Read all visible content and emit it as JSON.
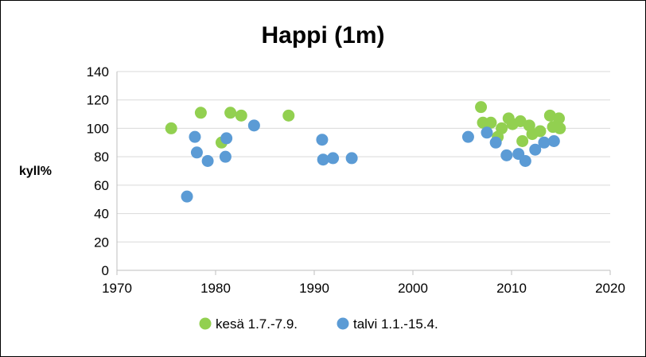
{
  "chart_data": {
    "type": "scatter",
    "title": "Happi (1m)",
    "xlabel": "",
    "ylabel": "kyll%",
    "xlim": [
      1970,
      2020
    ],
    "ylim": [
      0,
      140
    ],
    "xticks": [
      1970,
      1980,
      1990,
      2000,
      2010,
      2020
    ],
    "yticks": [
      0,
      20,
      40,
      60,
      80,
      100,
      120,
      140
    ],
    "grid": "horizontal",
    "legend_position": "bottom",
    "series": [
      {
        "name": "kesä 1.7.-7.9.",
        "color": "#92d050",
        "points": [
          {
            "x": 1975.5,
            "y": 100
          },
          {
            "x": 1978.5,
            "y": 111
          },
          {
            "x": 1980.6,
            "y": 90
          },
          {
            "x": 1981.5,
            "y": 111
          },
          {
            "x": 1982.6,
            "y": 109
          },
          {
            "x": 1987.4,
            "y": 109
          },
          {
            "x": 2006.9,
            "y": 115
          },
          {
            "x": 2007.1,
            "y": 104
          },
          {
            "x": 2007.9,
            "y": 104
          },
          {
            "x": 2008.6,
            "y": 94
          },
          {
            "x": 2009.0,
            "y": 100
          },
          {
            "x": 2009.7,
            "y": 107
          },
          {
            "x": 2010.1,
            "y": 103
          },
          {
            "x": 2010.9,
            "y": 105
          },
          {
            "x": 2011.1,
            "y": 91
          },
          {
            "x": 2011.8,
            "y": 102
          },
          {
            "x": 2012.1,
            "y": 96
          },
          {
            "x": 2012.9,
            "y": 98
          },
          {
            "x": 2013.9,
            "y": 109
          },
          {
            "x": 2014.2,
            "y": 101
          },
          {
            "x": 2014.8,
            "y": 107
          },
          {
            "x": 2014.9,
            "y": 100
          }
        ]
      },
      {
        "name": "talvi 1.1.-15.4.",
        "color": "#5b9bd5",
        "points": [
          {
            "x": 1977.1,
            "y": 52
          },
          {
            "x": 1977.9,
            "y": 94
          },
          {
            "x": 1978.1,
            "y": 83
          },
          {
            "x": 1979.2,
            "y": 77
          },
          {
            "x": 1981.0,
            "y": 80
          },
          {
            "x": 1981.1,
            "y": 93
          },
          {
            "x": 1983.9,
            "y": 102
          },
          {
            "x": 1990.8,
            "y": 92
          },
          {
            "x": 1990.9,
            "y": 78
          },
          {
            "x": 1991.9,
            "y": 79
          },
          {
            "x": 1993.8,
            "y": 79
          },
          {
            "x": 2005.6,
            "y": 94
          },
          {
            "x": 2007.5,
            "y": 97
          },
          {
            "x": 2008.4,
            "y": 90
          },
          {
            "x": 2009.5,
            "y": 81
          },
          {
            "x": 2010.7,
            "y": 82
          },
          {
            "x": 2011.4,
            "y": 77
          },
          {
            "x": 2012.4,
            "y": 85
          },
          {
            "x": 2013.3,
            "y": 90
          },
          {
            "x": 2014.3,
            "y": 91
          }
        ]
      }
    ]
  }
}
